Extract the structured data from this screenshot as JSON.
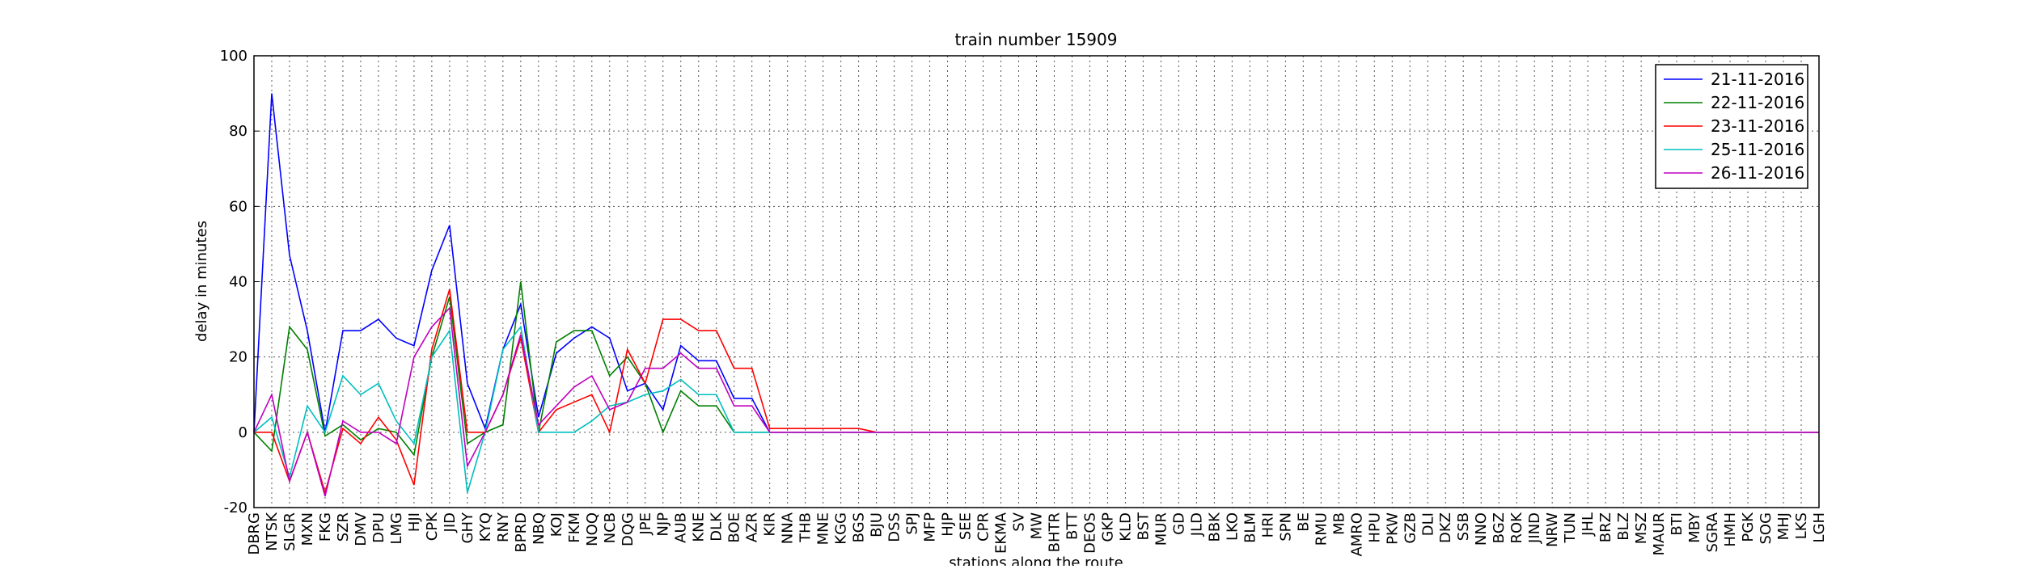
{
  "chart_data": {
    "type": "line",
    "title": "train number 15909",
    "x_label": "stations along the route",
    "y_label": "delay in minutes",
    "categories": [
      "DBRG",
      "NTSK",
      "SLGR",
      "MXN",
      "FKG",
      "SZR",
      "DMV",
      "DPU",
      "LMG",
      "HJI",
      "CPK",
      "JID",
      "GHY",
      "KYQ",
      "RNY",
      "BPRD",
      "NBQ",
      "KOJ",
      "FKM",
      "NOQ",
      "NCB",
      "DQG",
      "JPE",
      "NJP",
      "AUB",
      "KNE",
      "DLK",
      "BOE",
      "AZR",
      "KIR",
      "NNA",
      "THB",
      "MNE",
      "KGG",
      "BGS",
      "BJU",
      "DSS",
      "SPJ",
      "MFP",
      "HJP",
      "SEE",
      "CPR",
      "EKMA",
      "SV",
      "MW",
      "BHTR",
      "BTT",
      "DEOS",
      "GKP",
      "KLD",
      "BST",
      "MUR",
      "GD",
      "JLD",
      "BBK",
      "LKO",
      "BLM",
      "HRI",
      "SPN",
      "BE",
      "RMU",
      "MB",
      "AMRO",
      "HPU",
      "PKW",
      "GZB",
      "DLI",
      "DKZ",
      "SSB",
      "NNO",
      "BGZ",
      "ROK",
      "JIND",
      "NRW",
      "TUN",
      "JHL",
      "BRZ",
      "BLZ",
      "MSZ",
      "MAUR",
      "BTI",
      "MBY",
      "SGRA",
      "HMH",
      "PGK",
      "SOG",
      "MHJ",
      "LKS",
      "LGH"
    ],
    "series": [
      {
        "name": "21-11-2016",
        "color": "#0000ff",
        "values": [
          0,
          90,
          47,
          27,
          0,
          27,
          27,
          30,
          25,
          23,
          43,
          55,
          13,
          1,
          22,
          34,
          4,
          21,
          25,
          28,
          25,
          11,
          13,
          6,
          23,
          19,
          19,
          9,
          9,
          0,
          0,
          0,
          0,
          0,
          0,
          0,
          0,
          0,
          0,
          0,
          0,
          0,
          0,
          0,
          0,
          0,
          0,
          0,
          0,
          0,
          0,
          0,
          0,
          0,
          0,
          0,
          0,
          0,
          0,
          0,
          0,
          0,
          0,
          0,
          0,
          0,
          0,
          0,
          0,
          0,
          0,
          0,
          0,
          0,
          0,
          0,
          0,
          0,
          0,
          0,
          0,
          0,
          0,
          0,
          0,
          0,
          0,
          0,
          0
        ]
      },
      {
        "name": "22-11-2016",
        "color": "#008000",
        "values": [
          0,
          -5,
          28,
          22,
          -1,
          2,
          -2,
          1,
          0,
          -6,
          20,
          36,
          -3,
          0,
          2,
          40,
          0,
          24,
          27,
          27,
          15,
          20,
          13,
          0,
          11,
          7,
          7,
          0,
          0,
          0,
          0,
          0,
          0,
          0,
          0,
          0,
          0,
          0,
          0,
          0,
          0,
          0,
          0,
          0,
          0,
          0,
          0,
          0,
          0,
          0,
          0,
          0,
          0,
          0,
          0,
          0,
          0,
          0,
          0,
          0,
          0,
          0,
          0,
          0,
          0,
          0,
          0,
          0,
          0,
          0,
          0,
          0,
          0,
          0,
          0,
          0,
          0,
          0,
          0,
          0,
          0,
          0,
          0,
          0,
          0,
          0,
          0,
          0,
          0
        ]
      },
      {
        "name": "23-11-2016",
        "color": "#ff0000",
        "values": [
          0,
          0,
          -13,
          0,
          -16,
          1,
          -3,
          4,
          -2,
          -14,
          22,
          38,
          0,
          0,
          10,
          25,
          0,
          6,
          8,
          10,
          0,
          22,
          13,
          30,
          30,
          27,
          27,
          17,
          17,
          1,
          1,
          1,
          1,
          1,
          1,
          0,
          0,
          0,
          0,
          0,
          0,
          0,
          0,
          0,
          0,
          0,
          0,
          0,
          0,
          0,
          0,
          0,
          0,
          0,
          0,
          0,
          0,
          0,
          0,
          0,
          0,
          0,
          0,
          0,
          0,
          0,
          0,
          0,
          0,
          0,
          0,
          0,
          0,
          0,
          0,
          0,
          0,
          0,
          0,
          0,
          0,
          0,
          0,
          0,
          0,
          0,
          0,
          0,
          0
        ]
      },
      {
        "name": "25-11-2016",
        "color": "#00bfbf",
        "values": [
          0,
          4,
          -12,
          7,
          0,
          15,
          10,
          13,
          3,
          -3,
          20,
          27,
          -16,
          0,
          22,
          28,
          0,
          0,
          0,
          3,
          7,
          8,
          10,
          11,
          14,
          10,
          10,
          0,
          0,
          0,
          0,
          0,
          0,
          0,
          0,
          0,
          0,
          0,
          0,
          0,
          0,
          0,
          0,
          0,
          0,
          0,
          0,
          0,
          0,
          0,
          0,
          0,
          0,
          0,
          0,
          0,
          0,
          0,
          0,
          0,
          0,
          0,
          0,
          0,
          0,
          0,
          0,
          0,
          0,
          0,
          0,
          0,
          0,
          0,
          0,
          0,
          0,
          0,
          0,
          0,
          0,
          0,
          0,
          0,
          0,
          0,
          0,
          0,
          0
        ]
      },
      {
        "name": "26-11-2016",
        "color": "#bf00bf",
        "values": [
          0,
          10,
          -13,
          0,
          -17,
          3,
          0,
          0,
          -3,
          20,
          28,
          33,
          -9,
          0,
          10,
          26,
          2,
          7,
          12,
          15,
          6,
          8,
          17,
          17,
          21,
          17,
          17,
          7,
          7,
          0,
          0,
          0,
          0,
          0,
          0,
          0,
          0,
          0,
          0,
          0,
          0,
          0,
          0,
          0,
          0,
          0,
          0,
          0,
          0,
          0,
          0,
          0,
          0,
          0,
          0,
          0,
          0,
          0,
          0,
          0,
          0,
          0,
          0,
          0,
          0,
          0,
          0,
          0,
          0,
          0,
          0,
          0,
          0,
          0,
          0,
          0,
          0,
          0,
          0,
          0,
          0,
          0,
          0,
          0,
          0,
          0,
          0,
          0,
          0
        ]
      }
    ],
    "ylim": [
      -20,
      100
    ],
    "yticks": [
      -20,
      0,
      20,
      40,
      60,
      80,
      100
    ],
    "grid": true,
    "legend": "upper right"
  }
}
